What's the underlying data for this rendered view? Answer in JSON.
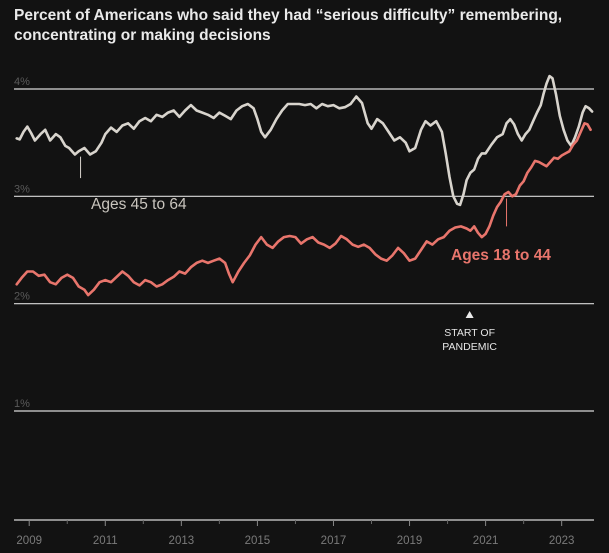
{
  "title": "Percent of Americans who said they had “serious difficulty” remembering, concentrating or making decisions",
  "annotation": {
    "label_line1": "START OF",
    "label_line2": "PANDEMIC",
    "x": 2020.58
  },
  "colors": {
    "background": "#121212",
    "older": "#d8d4cd",
    "younger": "#e8756c",
    "grid": "#d9d9d9",
    "text": "#9a9a9a"
  },
  "chart_data": {
    "type": "line",
    "title": "Percent of Americans who said they had “serious difficulty” remembering, concentrating or making decisions",
    "xlabel": "",
    "ylabel": "",
    "xlim": [
      2008.6,
      2023.85
    ],
    "ylim": [
      0,
      4.25
    ],
    "y_ticks": [
      {
        "value": 1,
        "label": "1%"
      },
      {
        "value": 2,
        "label": "2%"
      },
      {
        "value": 3,
        "label": "3%"
      },
      {
        "value": 4,
        "label": "4%"
      }
    ],
    "x_ticks": [
      {
        "value": 2009,
        "label": "2009"
      },
      {
        "value": 2011,
        "label": "2011"
      },
      {
        "value": 2013,
        "label": "2013"
      },
      {
        "value": 2015,
        "label": "2015"
      },
      {
        "value": 2017,
        "label": "2017"
      },
      {
        "value": 2019,
        "label": "2019"
      },
      {
        "value": 2021,
        "label": "2021"
      },
      {
        "value": 2023,
        "label": "2023"
      }
    ],
    "grid": true,
    "series": [
      {
        "name": "Ages 45 to 64",
        "points": [
          [
            2008.67,
            3.54
          ],
          [
            2008.75,
            3.53
          ],
          [
            2008.85,
            3.6
          ],
          [
            2008.95,
            3.65
          ],
          [
            2009.05,
            3.59
          ],
          [
            2009.15,
            3.52
          ],
          [
            2009.3,
            3.58
          ],
          [
            2009.42,
            3.62
          ],
          [
            2009.55,
            3.52
          ],
          [
            2009.7,
            3.58
          ],
          [
            2009.82,
            3.55
          ],
          [
            2009.95,
            3.47
          ],
          [
            2010.05,
            3.45
          ],
          [
            2010.2,
            3.39
          ],
          [
            2010.3,
            3.42
          ],
          [
            2010.45,
            3.45
          ],
          [
            2010.6,
            3.39
          ],
          [
            2010.75,
            3.42
          ],
          [
            2010.9,
            3.5
          ],
          [
            2011.0,
            3.58
          ],
          [
            2011.15,
            3.64
          ],
          [
            2011.3,
            3.6
          ],
          [
            2011.45,
            3.66
          ],
          [
            2011.6,
            3.68
          ],
          [
            2011.75,
            3.63
          ],
          [
            2011.9,
            3.7
          ],
          [
            2012.05,
            3.73
          ],
          [
            2012.2,
            3.7
          ],
          [
            2012.35,
            3.76
          ],
          [
            2012.5,
            3.74
          ],
          [
            2012.65,
            3.78
          ],
          [
            2012.8,
            3.8
          ],
          [
            2012.95,
            3.74
          ],
          [
            2013.1,
            3.8
          ],
          [
            2013.25,
            3.85
          ],
          [
            2013.4,
            3.8
          ],
          [
            2013.55,
            3.78
          ],
          [
            2013.7,
            3.76
          ],
          [
            2013.85,
            3.73
          ],
          [
            2014.0,
            3.78
          ],
          [
            2014.15,
            3.75
          ],
          [
            2014.3,
            3.72
          ],
          [
            2014.45,
            3.8
          ],
          [
            2014.6,
            3.84
          ],
          [
            2014.75,
            3.86
          ],
          [
            2014.9,
            3.82
          ],
          [
            2015.0,
            3.72
          ],
          [
            2015.1,
            3.6
          ],
          [
            2015.2,
            3.55
          ],
          [
            2015.35,
            3.62
          ],
          [
            2015.5,
            3.72
          ],
          [
            2015.65,
            3.8
          ],
          [
            2015.8,
            3.86
          ],
          [
            2015.95,
            3.86
          ],
          [
            2016.1,
            3.86
          ],
          [
            2016.25,
            3.85
          ],
          [
            2016.4,
            3.86
          ],
          [
            2016.55,
            3.82
          ],
          [
            2016.7,
            3.86
          ],
          [
            2016.85,
            3.84
          ],
          [
            2017.0,
            3.85
          ],
          [
            2017.15,
            3.82
          ],
          [
            2017.3,
            3.83
          ],
          [
            2017.45,
            3.86
          ],
          [
            2017.6,
            3.93
          ],
          [
            2017.75,
            3.87
          ],
          [
            2017.9,
            3.68
          ],
          [
            2018.0,
            3.63
          ],
          [
            2018.15,
            3.72
          ],
          [
            2018.3,
            3.68
          ],
          [
            2018.45,
            3.6
          ],
          [
            2018.6,
            3.52
          ],
          [
            2018.75,
            3.55
          ],
          [
            2018.9,
            3.5
          ],
          [
            2019.0,
            3.42
          ],
          [
            2019.15,
            3.45
          ],
          [
            2019.3,
            3.62
          ],
          [
            2019.42,
            3.7
          ],
          [
            2019.55,
            3.66
          ],
          [
            2019.7,
            3.7
          ],
          [
            2019.85,
            3.6
          ],
          [
            2019.95,
            3.4
          ],
          [
            2020.05,
            3.18
          ],
          [
            2020.15,
            3.0
          ],
          [
            2020.25,
            2.93
          ],
          [
            2020.33,
            2.92
          ],
          [
            2020.42,
            3.02
          ],
          [
            2020.5,
            3.15
          ],
          [
            2020.6,
            3.22
          ],
          [
            2020.7,
            3.25
          ],
          [
            2020.8,
            3.35
          ],
          [
            2020.9,
            3.4
          ],
          [
            2021.0,
            3.4
          ],
          [
            2021.15,
            3.48
          ],
          [
            2021.3,
            3.55
          ],
          [
            2021.45,
            3.58
          ],
          [
            2021.55,
            3.68
          ],
          [
            2021.65,
            3.72
          ],
          [
            2021.75,
            3.67
          ],
          [
            2021.85,
            3.58
          ],
          [
            2021.95,
            3.52
          ],
          [
            2022.05,
            3.58
          ],
          [
            2022.15,
            3.62
          ],
          [
            2022.25,
            3.7
          ],
          [
            2022.35,
            3.78
          ],
          [
            2022.45,
            3.85
          ],
          [
            2022.52,
            3.95
          ],
          [
            2022.6,
            4.05
          ],
          [
            2022.68,
            4.12
          ],
          [
            2022.76,
            4.1
          ],
          [
            2022.85,
            3.95
          ],
          [
            2022.95,
            3.75
          ],
          [
            2023.05,
            3.62
          ],
          [
            2023.15,
            3.52
          ],
          [
            2023.25,
            3.47
          ],
          [
            2023.35,
            3.55
          ],
          [
            2023.45,
            3.65
          ],
          [
            2023.55,
            3.78
          ],
          [
            2023.63,
            3.84
          ],
          [
            2023.72,
            3.82
          ],
          [
            2023.8,
            3.79
          ]
        ]
      },
      {
        "name": "Ages 18 to 44",
        "points": [
          [
            2008.67,
            2.18
          ],
          [
            2008.8,
            2.24
          ],
          [
            2008.95,
            2.3
          ],
          [
            2009.1,
            2.3
          ],
          [
            2009.25,
            2.26
          ],
          [
            2009.4,
            2.27
          ],
          [
            2009.55,
            2.2
          ],
          [
            2009.7,
            2.18
          ],
          [
            2009.85,
            2.24
          ],
          [
            2010.0,
            2.27
          ],
          [
            2010.15,
            2.24
          ],
          [
            2010.3,
            2.16
          ],
          [
            2010.45,
            2.13
          ],
          [
            2010.55,
            2.08
          ],
          [
            2010.7,
            2.13
          ],
          [
            2010.85,
            2.2
          ],
          [
            2011.0,
            2.22
          ],
          [
            2011.15,
            2.2
          ],
          [
            2011.3,
            2.25
          ],
          [
            2011.45,
            2.3
          ],
          [
            2011.6,
            2.26
          ],
          [
            2011.75,
            2.2
          ],
          [
            2011.9,
            2.17
          ],
          [
            2012.05,
            2.22
          ],
          [
            2012.2,
            2.2
          ],
          [
            2012.35,
            2.16
          ],
          [
            2012.5,
            2.18
          ],
          [
            2012.65,
            2.22
          ],
          [
            2012.8,
            2.25
          ],
          [
            2012.95,
            2.3
          ],
          [
            2013.1,
            2.28
          ],
          [
            2013.25,
            2.34
          ],
          [
            2013.4,
            2.38
          ],
          [
            2013.55,
            2.4
          ],
          [
            2013.7,
            2.38
          ],
          [
            2013.85,
            2.4
          ],
          [
            2014.0,
            2.42
          ],
          [
            2014.15,
            2.38
          ],
          [
            2014.25,
            2.28
          ],
          [
            2014.35,
            2.2
          ],
          [
            2014.5,
            2.3
          ],
          [
            2014.65,
            2.38
          ],
          [
            2014.8,
            2.45
          ],
          [
            2014.95,
            2.55
          ],
          [
            2015.1,
            2.62
          ],
          [
            2015.25,
            2.55
          ],
          [
            2015.4,
            2.52
          ],
          [
            2015.55,
            2.58
          ],
          [
            2015.7,
            2.62
          ],
          [
            2015.85,
            2.63
          ],
          [
            2016.0,
            2.62
          ],
          [
            2016.15,
            2.56
          ],
          [
            2016.3,
            2.6
          ],
          [
            2016.45,
            2.62
          ],
          [
            2016.6,
            2.57
          ],
          [
            2016.75,
            2.55
          ],
          [
            2016.9,
            2.52
          ],
          [
            2017.05,
            2.56
          ],
          [
            2017.2,
            2.63
          ],
          [
            2017.35,
            2.6
          ],
          [
            2017.5,
            2.55
          ],
          [
            2017.65,
            2.53
          ],
          [
            2017.8,
            2.55
          ],
          [
            2017.95,
            2.52
          ],
          [
            2018.1,
            2.46
          ],
          [
            2018.25,
            2.42
          ],
          [
            2018.4,
            2.4
          ],
          [
            2018.55,
            2.45
          ],
          [
            2018.7,
            2.52
          ],
          [
            2018.85,
            2.47
          ],
          [
            2019.0,
            2.4
          ],
          [
            2019.15,
            2.42
          ],
          [
            2019.3,
            2.5
          ],
          [
            2019.45,
            2.58
          ],
          [
            2019.6,
            2.55
          ],
          [
            2019.75,
            2.6
          ],
          [
            2019.9,
            2.62
          ],
          [
            2020.05,
            2.68
          ],
          [
            2020.2,
            2.71
          ],
          [
            2020.35,
            2.72
          ],
          [
            2020.5,
            2.7
          ],
          [
            2020.6,
            2.68
          ],
          [
            2020.7,
            2.72
          ],
          [
            2020.8,
            2.66
          ],
          [
            2020.9,
            2.62
          ],
          [
            2021.0,
            2.65
          ],
          [
            2021.1,
            2.72
          ],
          [
            2021.2,
            2.82
          ],
          [
            2021.3,
            2.9
          ],
          [
            2021.4,
            2.95
          ],
          [
            2021.5,
            3.02
          ],
          [
            2021.6,
            3.04
          ],
          [
            2021.7,
            3.0
          ],
          [
            2021.8,
            3.02
          ],
          [
            2021.9,
            3.1
          ],
          [
            2022.0,
            3.14
          ],
          [
            2022.1,
            3.22
          ],
          [
            2022.2,
            3.27
          ],
          [
            2022.3,
            3.33
          ],
          [
            2022.4,
            3.32
          ],
          [
            2022.5,
            3.3
          ],
          [
            2022.6,
            3.28
          ],
          [
            2022.7,
            3.32
          ],
          [
            2022.8,
            3.36
          ],
          [
            2022.9,
            3.35
          ],
          [
            2023.0,
            3.38
          ],
          [
            2023.1,
            3.4
          ],
          [
            2023.2,
            3.42
          ],
          [
            2023.3,
            3.48
          ],
          [
            2023.4,
            3.52
          ],
          [
            2023.5,
            3.6
          ],
          [
            2023.6,
            3.68
          ],
          [
            2023.68,
            3.67
          ],
          [
            2023.76,
            3.62
          ]
        ]
      }
    ],
    "labels": [
      {
        "series": "Ages 45 to 64",
        "text": "Ages 45 to 64"
      },
      {
        "series": "Ages 18 to 44",
        "text": "Ages 18 to 44"
      }
    ]
  }
}
